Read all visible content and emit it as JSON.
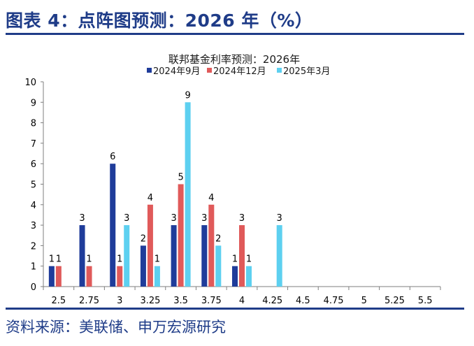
{
  "header": {
    "figure_title": "图表 4：点阵图预测：2026 年（%）"
  },
  "footer": {
    "source": "资料来源：美联储、申万宏源研究"
  },
  "chart_data": {
    "type": "bar",
    "title": "联邦基金利率预测：2026年",
    "xlabel": "",
    "ylabel": "",
    "ylim": [
      0,
      10
    ],
    "yticks": [
      0,
      1,
      2,
      3,
      4,
      5,
      6,
      7,
      8,
      9,
      10
    ],
    "legend_position": "top-center",
    "categories": [
      "2.5",
      "2.75",
      "3",
      "3.25",
      "3.5",
      "3.75",
      "4",
      "4.25",
      "4.5",
      "4.75",
      "5",
      "5.25",
      "5.5"
    ],
    "series": [
      {
        "name": "2024年9月",
        "color": "#1f3c9a",
        "values": [
          1,
          3,
          6,
          2,
          3,
          3,
          1,
          0,
          0,
          0,
          0,
          0,
          0
        ]
      },
      {
        "name": "2024年12月",
        "color": "#e05a5a",
        "values": [
          1,
          1,
          1,
          4,
          5,
          4,
          3,
          0,
          0,
          0,
          0,
          0,
          0
        ]
      },
      {
        "name": "2025年3月",
        "color": "#5dd0f0",
        "values": [
          0,
          0,
          3,
          1,
          9,
          2,
          1,
          3,
          0,
          0,
          0,
          0,
          0
        ]
      }
    ]
  }
}
